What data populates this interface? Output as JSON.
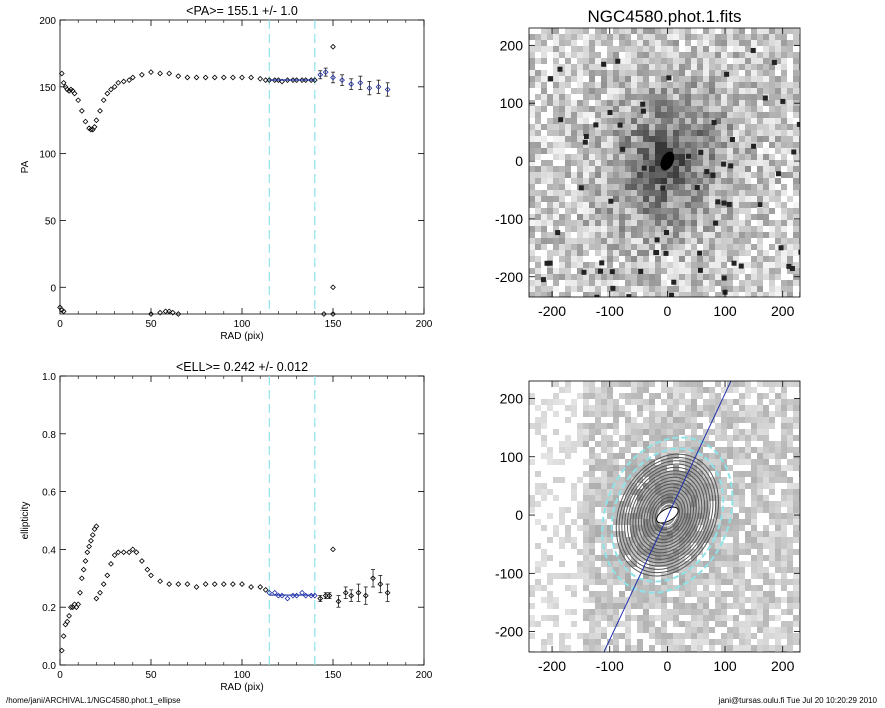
{
  "chart_data": [
    {
      "type": "scatter",
      "title": "<PA>= 155.1 +/-   1.0",
      "xlabel": "RAD (pix)",
      "ylabel": "PA",
      "xlim": [
        0,
        200
      ],
      "ylim": [
        -20,
        200
      ],
      "xticks": [
        "0",
        "50",
        "100",
        "150",
        "200"
      ],
      "yticks": [
        "0",
        "50",
        "100",
        "150",
        "200"
      ],
      "fit_range": [
        115,
        140
      ],
      "fit_value": 155.1,
      "series": [
        {
          "x": [
            1,
            2,
            3,
            4,
            5,
            6,
            7,
            8,
            10,
            12,
            14,
            16,
            17,
            18,
            19,
            20,
            22,
            24,
            26,
            28,
            30,
            32,
            35,
            38,
            40,
            45,
            50,
            55,
            60,
            65,
            70,
            75,
            80,
            85,
            90,
            95,
            100,
            105,
            110,
            113
          ],
          "y": [
            160,
            153,
            150,
            148,
            147,
            148,
            147,
            145,
            140,
            132,
            124,
            119,
            118,
            118,
            120,
            125,
            132,
            140,
            145,
            148,
            150,
            153,
            154,
            155,
            157,
            159,
            161,
            160,
            160,
            158,
            157,
            157,
            157,
            157,
            157,
            157,
            157,
            157,
            156,
            155
          ]
        },
        {
          "x": [
            115,
            118,
            120,
            122,
            125,
            128,
            130,
            133,
            135,
            138,
            140
          ],
          "y": [
            155,
            155,
            155,
            154,
            155,
            155,
            155,
            155,
            155,
            155,
            155
          ]
        },
        {
          "x": [
            143,
            146,
            150,
            155,
            160,
            165,
            170,
            175,
            180
          ],
          "y": [
            159,
            161,
            157,
            155,
            152,
            153,
            149,
            150,
            148
          ],
          "err": [
            3,
            3,
            4,
            4,
            4,
            5,
            5,
            5,
            5
          ]
        },
        {
          "x": [
            0,
            1,
            2,
            50,
            55,
            58,
            60,
            62,
            65,
            145,
            150
          ],
          "y": [
            -15,
            -17,
            -18,
            -20,
            -19,
            -18,
            -18,
            -19,
            -20,
            -20,
            -20
          ]
        },
        {
          "x": [
            150,
            150
          ],
          "y": [
            180,
            0
          ]
        }
      ]
    },
    {
      "type": "scatter",
      "title": "<ELL>= 0.242 +/-  0.012",
      "xlabel": "RAD (pix)",
      "ylabel": "ellipticity",
      "xlim": [
        0,
        200
      ],
      "ylim": [
        0,
        1
      ],
      "xticks": [
        "0",
        "50",
        "100",
        "150",
        "200"
      ],
      "yticks": [
        "0.0",
        "0.2",
        "0.4",
        "0.6",
        "0.8",
        "1.0"
      ],
      "fit_range": [
        115,
        140
      ],
      "fit_value": 0.242,
      "series": [
        {
          "x": [
            1,
            2,
            3,
            4,
            5,
            6,
            7,
            8,
            9,
            10,
            11,
            12,
            13,
            14,
            15,
            16,
            17,
            18,
            19,
            20
          ],
          "y": [
            0.05,
            0.1,
            0.14,
            0.15,
            0.17,
            0.2,
            0.2,
            0.21,
            0.2,
            0.21,
            0.25,
            0.3,
            0.33,
            0.36,
            0.39,
            0.41,
            0.43,
            0.45,
            0.47,
            0.48
          ]
        },
        {
          "x": [
            20,
            22,
            24,
            26,
            28,
            30,
            32,
            35,
            38,
            40,
            42,
            45,
            48,
            50,
            55,
            60,
            65,
            70,
            75,
            80,
            85,
            90,
            95,
            100,
            105,
            110,
            113
          ],
          "y": [
            0.23,
            0.25,
            0.28,
            0.31,
            0.35,
            0.38,
            0.39,
            0.39,
            0.39,
            0.4,
            0.39,
            0.36,
            0.33,
            0.31,
            0.29,
            0.28,
            0.28,
            0.28,
            0.27,
            0.28,
            0.28,
            0.28,
            0.28,
            0.28,
            0.27,
            0.27,
            0.26
          ]
        },
        {
          "x": [
            115,
            118,
            120,
            122,
            125,
            128,
            130,
            133,
            135,
            138,
            140
          ],
          "y": [
            0.25,
            0.25,
            0.24,
            0.24,
            0.23,
            0.24,
            0.24,
            0.25,
            0.24,
            0.24,
            0.24
          ]
        },
        {
          "x": [
            143,
            146,
            148,
            150,
            153,
            157,
            160,
            164,
            168,
            172,
            176,
            180
          ],
          "y": [
            0.23,
            0.24,
            0.24,
            0.4,
            0.22,
            0.25,
            0.24,
            0.25,
            0.24,
            0.3,
            0.28,
            0.25
          ],
          "err": [
            0.01,
            0.01,
            0.01,
            0.0,
            0.02,
            0.02,
            0.02,
            0.03,
            0.03,
            0.03,
            0.03,
            0.03
          ]
        }
      ]
    },
    {
      "type": "heatmap",
      "title": "NGC4580.phot.1.fits",
      "xlim": [
        -240,
        230
      ],
      "ylim": [
        -235,
        230
      ],
      "xticks": [
        "-200",
        "-100",
        "0",
        "100",
        "200"
      ],
      "yticks": [
        "-200",
        "-100",
        "0",
        "100",
        "200"
      ]
    },
    {
      "type": "heatmap",
      "title": "",
      "xlim": [
        -240,
        230
      ],
      "ylim": [
        -235,
        230
      ],
      "xticks": [
        "-200",
        "-100",
        "0",
        "100",
        "200"
      ],
      "yticks": [
        "-200",
        "-100",
        "0",
        "100",
        "200"
      ],
      "contour_pa_deg": 155.1,
      "contour_ell": 0.242,
      "outer_contour_sma": 140
    }
  ],
  "footer": {
    "left": "/home/jani/ARCHIVAL.1/NGC4580.phot.1_ellipse",
    "right": "jani@tursas.oulu.fi  Tue Jul 20 10:20:29 2010"
  },
  "colors": {
    "fit": "#1f2fa8",
    "dashed": "#8fe3e8",
    "axis": "#000000"
  }
}
